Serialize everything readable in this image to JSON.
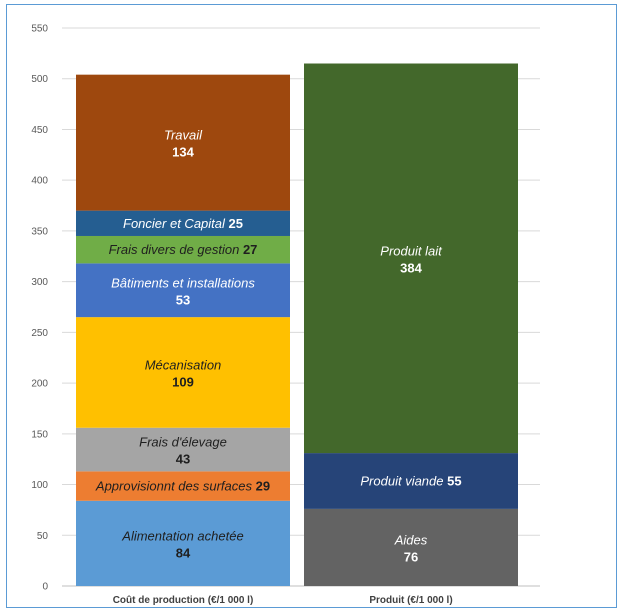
{
  "chart_data": {
    "type": "bar",
    "stacked": true,
    "title": "",
    "xlabel": "",
    "ylabel": "",
    "ylim": [
      0,
      550
    ],
    "yticks": [
      0,
      50,
      100,
      150,
      200,
      250,
      300,
      350,
      400,
      450,
      500,
      550
    ],
    "grid": true,
    "categories": [
      "Coût de production (€/1 000 l)",
      "Produit (€/1 000 l)"
    ],
    "stacks": [
      {
        "category": "Coût de production (€/1 000 l)",
        "segments": [
          {
            "name": "Alimentation achetée",
            "value": 84,
            "color": "#5b9bd5",
            "text_color": "#1f1f1f",
            "label_layout": "stacked"
          },
          {
            "name": "Approvisionnt des surfaces",
            "value": 29,
            "color": "#ed7d31",
            "text_color": "#1f1f1f",
            "label_layout": "inline"
          },
          {
            "name": "Frais d'élevage",
            "value": 43,
            "color": "#a5a5a5",
            "text_color": "#1f1f1f",
            "label_layout": "stacked"
          },
          {
            "name": "Mécanisation",
            "value": 109,
            "color": "#ffc000",
            "text_color": "#1f1f1f",
            "label_layout": "stacked"
          },
          {
            "name": "Bâtiments et installations",
            "value": 53,
            "color": "#4472c4",
            "text_color": "#ffffff",
            "label_layout": "stacked"
          },
          {
            "name": "Frais divers de gestion",
            "value": 27,
            "color": "#70ad47",
            "text_color": "#1f1f1f",
            "label_layout": "inline"
          },
          {
            "name": "Foncier et Capital",
            "value": 25,
            "color": "#255e91",
            "text_color": "#ffffff",
            "label_layout": "inline"
          },
          {
            "name": "Travail",
            "value": 134,
            "color": "#9e480e",
            "text_color": "#ffffff",
            "label_layout": "stacked"
          }
        ]
      },
      {
        "category": "Produit (€/1 000 l)",
        "segments": [
          {
            "name": "Aides",
            "value": 76,
            "color": "#636363",
            "text_color": "#ffffff",
            "label_layout": "stacked"
          },
          {
            "name": "Produit viande",
            "value": 55,
            "color": "#264478",
            "text_color": "#ffffff",
            "label_layout": "inline"
          },
          {
            "name": "Produit lait",
            "value": 384,
            "color": "#43682b",
            "text_color": "#ffffff",
            "label_layout": "stacked"
          }
        ]
      }
    ]
  }
}
